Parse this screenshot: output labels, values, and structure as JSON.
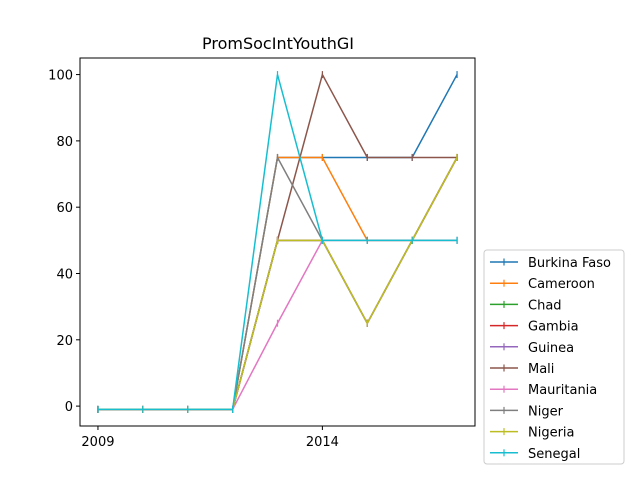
{
  "chart_data": {
    "type": "line",
    "title": "PromSocIntYouthGI",
    "xlabel": "",
    "ylabel": "",
    "x": [
      2009,
      2010,
      2011,
      2012,
      2013,
      2014,
      2015,
      2016,
      2017
    ],
    "xlim": [
      2008.6,
      2017.4
    ],
    "ylim": [
      -6,
      105
    ],
    "xticks": [
      2009,
      2014
    ],
    "yticks": [
      0,
      20,
      40,
      60,
      80,
      100
    ],
    "grid": false,
    "legend_position": "lower-right outside",
    "series": [
      {
        "name": "Burkina Faso",
        "color": "#1f77b4",
        "values": [
          -1,
          -1,
          -1,
          -1,
          75,
          75,
          75,
          75,
          100
        ]
      },
      {
        "name": "Cameroon",
        "color": "#ff7f0e",
        "values": [
          -1,
          -1,
          -1,
          -1,
          75,
          75,
          50,
          50,
          75
        ]
      },
      {
        "name": "Chad",
        "color": "#2ca02c",
        "values": [
          -1,
          -1,
          -1,
          -1,
          50,
          50,
          25,
          50,
          75
        ]
      },
      {
        "name": "Gambia",
        "color": "#d62728",
        "values": [
          -1,
          -1,
          -1,
          -1,
          50,
          50,
          25,
          50,
          75
        ]
      },
      {
        "name": "Guinea",
        "color": "#9467bd",
        "values": [
          -1,
          -1,
          -1,
          -1,
          50,
          50,
          25,
          50,
          75
        ]
      },
      {
        "name": "Mali",
        "color": "#8c564b",
        "values": [
          -1,
          -1,
          -1,
          -1,
          50,
          100,
          75,
          75,
          75
        ]
      },
      {
        "name": "Mauritania",
        "color": "#e377c2",
        "values": [
          -1,
          -1,
          -1,
          -1,
          25,
          50,
          50,
          50,
          50
        ]
      },
      {
        "name": "Niger",
        "color": "#7f7f7f",
        "values": [
          -1,
          -1,
          -1,
          -1,
          75,
          50,
          50,
          50,
          50
        ]
      },
      {
        "name": "Nigeria",
        "color": "#bcbd22",
        "values": [
          -1,
          -1,
          -1,
          -1,
          50,
          50,
          25,
          50,
          75
        ]
      },
      {
        "name": "Senegal",
        "color": "#17becf",
        "values": [
          -1,
          -1,
          -1,
          -1,
          100,
          50,
          50,
          50,
          50
        ]
      }
    ]
  }
}
